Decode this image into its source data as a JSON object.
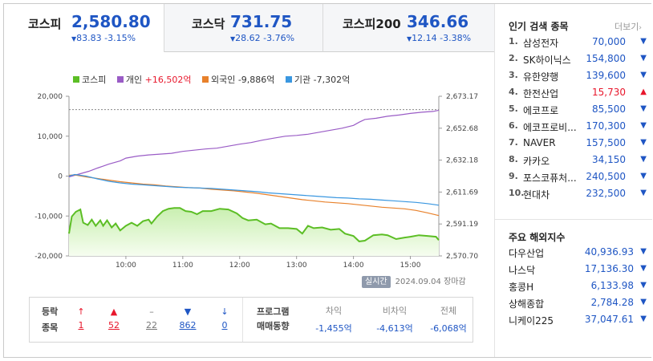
{
  "tabs": [
    {
      "name": "코스피",
      "value": "2,580.80",
      "change_icon": "▼",
      "change": "83.83 -3.15%",
      "active": true
    },
    {
      "name": "코스닥",
      "value": "731.75",
      "change_icon": "▼",
      "change": "28.62 -3.76%",
      "active": false
    },
    {
      "name": "코스피200",
      "value": "346.66",
      "change_icon": "▼",
      "change": "12.14 -3.38%",
      "active": false
    }
  ],
  "legend": [
    {
      "label": "코스피",
      "value": "",
      "color": "#5cbe25",
      "value_color": "#333"
    },
    {
      "label": "개인",
      "value": "+16,502억",
      "color": "#9a5cc6",
      "value_color": "#e8172c"
    },
    {
      "label": "외국인",
      "value": "-9,886억",
      "color": "#e8812b",
      "value_color": "#333"
    },
    {
      "label": "기관",
      "value": "-7,302억",
      "color": "#3a97e0",
      "value_color": "#333"
    }
  ],
  "chart_data": {
    "type": "line",
    "x_ticks": [
      "10:00",
      "11:00",
      "12:00",
      "13:00",
      "14:00",
      "15:00"
    ],
    "y_left_ticks": [
      "20,000",
      "10,000",
      "0",
      "-10,000",
      "-20,000"
    ],
    "y_right_ticks": [
      "2,673.17",
      "2,652.68",
      "2,632.18",
      "2,611.69",
      "2,591.19",
      "2,570.70"
    ],
    "y_left_range": [
      -20000,
      20000
    ],
    "y_right_range": [
      2570.7,
      2673.17
    ],
    "prev_close_ref": 2664.63,
    "series": [
      {
        "name": "코스피",
        "axis": "right",
        "color": "#5cbe25",
        "fill": true,
        "x": [
          9.0,
          9.05,
          9.12,
          9.2,
          9.25,
          9.33,
          9.4,
          9.47,
          9.55,
          9.6,
          9.67,
          9.75,
          9.82,
          9.9,
          10.0,
          10.1,
          10.2,
          10.3,
          10.4,
          10.45,
          10.55,
          10.65,
          10.75,
          10.85,
          10.95,
          11.05,
          11.15,
          11.25,
          11.35,
          11.5,
          11.65,
          11.8,
          11.95,
          12.05,
          12.15,
          12.3,
          12.45,
          12.55,
          12.7,
          12.85,
          13.0,
          13.1,
          13.2,
          13.3,
          13.45,
          13.6,
          13.75,
          13.85,
          14.0,
          14.1,
          14.2,
          14.35,
          14.5,
          14.6,
          14.75,
          14.9,
          15.0,
          15.15,
          15.3,
          15.45,
          15.5
        ],
        "y": [
          2585.0,
          2596.0,
          2599.0,
          2600.5,
          2592.0,
          2590.5,
          2594.0,
          2590.0,
          2593.5,
          2590.0,
          2593.5,
          2589.0,
          2591.5,
          2587.0,
          2590.0,
          2592.0,
          2590.0,
          2593.0,
          2594.0,
          2591.5,
          2596.0,
          2599.5,
          2601.0,
          2601.5,
          2601.5,
          2599.5,
          2599.0,
          2597.5,
          2599.5,
          2599.5,
          2601.0,
          2600.5,
          2598.0,
          2595.0,
          2593.5,
          2594.0,
          2591.0,
          2591.5,
          2588.5,
          2588.5,
          2588.0,
          2585.0,
          2590.0,
          2588.5,
          2589.0,
          2587.5,
          2588.0,
          2585.0,
          2583.5,
          2580.0,
          2580.5,
          2584.0,
          2584.5,
          2584.0,
          2581.5,
          2582.5,
          2583.0,
          2584.0,
          2583.5,
          2583.0,
          2580.8
        ]
      },
      {
        "name": "개인",
        "axis": "left",
        "color": "#9a5cc6",
        "x": [
          9.0,
          9.1,
          9.2,
          9.35,
          9.5,
          9.7,
          9.9,
          10.0,
          10.2,
          10.4,
          10.6,
          10.8,
          11.0,
          11.2,
          11.4,
          11.6,
          11.8,
          12.0,
          12.2,
          12.4,
          12.6,
          12.8,
          13.0,
          13.2,
          13.4,
          13.6,
          13.8,
          14.0,
          14.1,
          14.2,
          14.4,
          14.6,
          14.8,
          15.0,
          15.2,
          15.4,
          15.5
        ],
        "y": [
          -200,
          200,
          600,
          1200,
          2000,
          3000,
          3800,
          4500,
          5000,
          5300,
          5500,
          5700,
          6200,
          6500,
          6800,
          7000,
          7500,
          8000,
          8400,
          9000,
          9500,
          10000,
          10200,
          10500,
          11000,
          11500,
          12000,
          12700,
          13500,
          14200,
          14500,
          15000,
          15300,
          15700,
          16000,
          16200,
          16502
        ]
      },
      {
        "name": "외국인",
        "axis": "left",
        "color": "#e8812b",
        "x": [
          9.0,
          9.1,
          9.3,
          9.5,
          9.7,
          9.9,
          10.1,
          10.3,
          10.5,
          10.7,
          10.9,
          11.1,
          11.3,
          11.5,
          11.7,
          11.9,
          12.1,
          12.3,
          12.5,
          12.7,
          12.9,
          13.1,
          13.3,
          13.5,
          13.7,
          13.9,
          14.1,
          14.3,
          14.5,
          14.7,
          14.9,
          15.1,
          15.3,
          15.5
        ],
        "y": [
          200,
          300,
          -200,
          -600,
          -1000,
          -1400,
          -1700,
          -2000,
          -2200,
          -2500,
          -2700,
          -2900,
          -3000,
          -3300,
          -3500,
          -3700,
          -4000,
          -4300,
          -4700,
          -5100,
          -5500,
          -5900,
          -6200,
          -6500,
          -6700,
          -6900,
          -7200,
          -7500,
          -7800,
          -8000,
          -8200,
          -8600,
          -9200,
          -9886
        ]
      },
      {
        "name": "기관",
        "axis": "left",
        "color": "#3a97e0",
        "x": [
          9.0,
          9.1,
          9.3,
          9.5,
          9.7,
          9.9,
          10.1,
          10.3,
          10.5,
          10.7,
          10.9,
          11.1,
          11.3,
          11.5,
          11.7,
          11.9,
          12.1,
          12.3,
          12.5,
          12.7,
          12.9,
          13.1,
          13.3,
          13.5,
          13.7,
          13.9,
          14.1,
          14.3,
          14.5,
          14.7,
          14.9,
          15.1,
          15.3,
          15.5
        ],
        "y": [
          0,
          400,
          0,
          -700,
          -1300,
          -1700,
          -2000,
          -2200,
          -2400,
          -2600,
          -2800,
          -2900,
          -3000,
          -3100,
          -3300,
          -3500,
          -3700,
          -3900,
          -4200,
          -4400,
          -4600,
          -4800,
          -5000,
          -5200,
          -5400,
          -5500,
          -5700,
          -5800,
          -6000,
          -6200,
          -6400,
          -6600,
          -6900,
          -7302
        ]
      }
    ]
  },
  "stamp": {
    "badge": "실시간",
    "date": "2024.09.04",
    "status": "장마감"
  },
  "updown": {
    "label1": "등락",
    "label2": "종목",
    "items": [
      {
        "icon": "↑",
        "count": "1",
        "color": "red"
      },
      {
        "icon": "▲",
        "count": "52",
        "color": "red"
      },
      {
        "icon": "–",
        "count": "22",
        "color": "grey"
      },
      {
        "icon": "▼",
        "count": "862",
        "color": "blue"
      },
      {
        "icon": "↓",
        "count": "0",
        "color": "blue"
      }
    ]
  },
  "program": {
    "label1": "프로그램",
    "label2": "매매동향",
    "cols": [
      {
        "head": "차익",
        "value": "-1,455억"
      },
      {
        "head": "비차익",
        "value": "-4,613억"
      },
      {
        "head": "전체",
        "value": "-6,068억"
      }
    ]
  },
  "popular": {
    "title": "인기 검색 종목",
    "more": "더보기",
    "items": [
      {
        "rank": "1.",
        "name": "삼성전자",
        "price": "70,000",
        "dir": "▼",
        "color": "#1f56c4"
      },
      {
        "rank": "2.",
        "name": "SK하이닉스",
        "price": "154,800",
        "dir": "▼",
        "color": "#1f56c4"
      },
      {
        "rank": "3.",
        "name": "유한양행",
        "price": "139,600",
        "dir": "▼",
        "color": "#1f56c4"
      },
      {
        "rank": "4.",
        "name": "한전산업",
        "price": "15,730",
        "dir": "▲",
        "color": "#e8172c"
      },
      {
        "rank": "5.",
        "name": "에코프로",
        "price": "85,500",
        "dir": "▼",
        "color": "#1f56c4"
      },
      {
        "rank": "6.",
        "name": "에코프로비...",
        "price": "170,300",
        "dir": "▼",
        "color": "#1f56c4"
      },
      {
        "rank": "7.",
        "name": "NAVER",
        "price": "157,500",
        "dir": "▼",
        "color": "#1f56c4"
      },
      {
        "rank": "8.",
        "name": "카카오",
        "price": "34,150",
        "dir": "▼",
        "color": "#1f56c4"
      },
      {
        "rank": "9.",
        "name": "포스코퓨처...",
        "price": "240,500",
        "dir": "▼",
        "color": "#1f56c4"
      },
      {
        "rank": "10.",
        "name": "현대차",
        "price": "232,500",
        "dir": "▼",
        "color": "#1f56c4"
      }
    ]
  },
  "world": {
    "title": "주요 해외지수",
    "items": [
      {
        "name": "다우산업",
        "price": "40,936.93",
        "dir": "▼"
      },
      {
        "name": "나스닥",
        "price": "17,136.30",
        "dir": "▼"
      },
      {
        "name": "홍콩H",
        "price": "6,133.98",
        "dir": "▼"
      },
      {
        "name": "상해종합",
        "price": "2,784.28",
        "dir": "▼"
      },
      {
        "name": "니케이225",
        "price": "37,047.61",
        "dir": "▼"
      }
    ]
  }
}
